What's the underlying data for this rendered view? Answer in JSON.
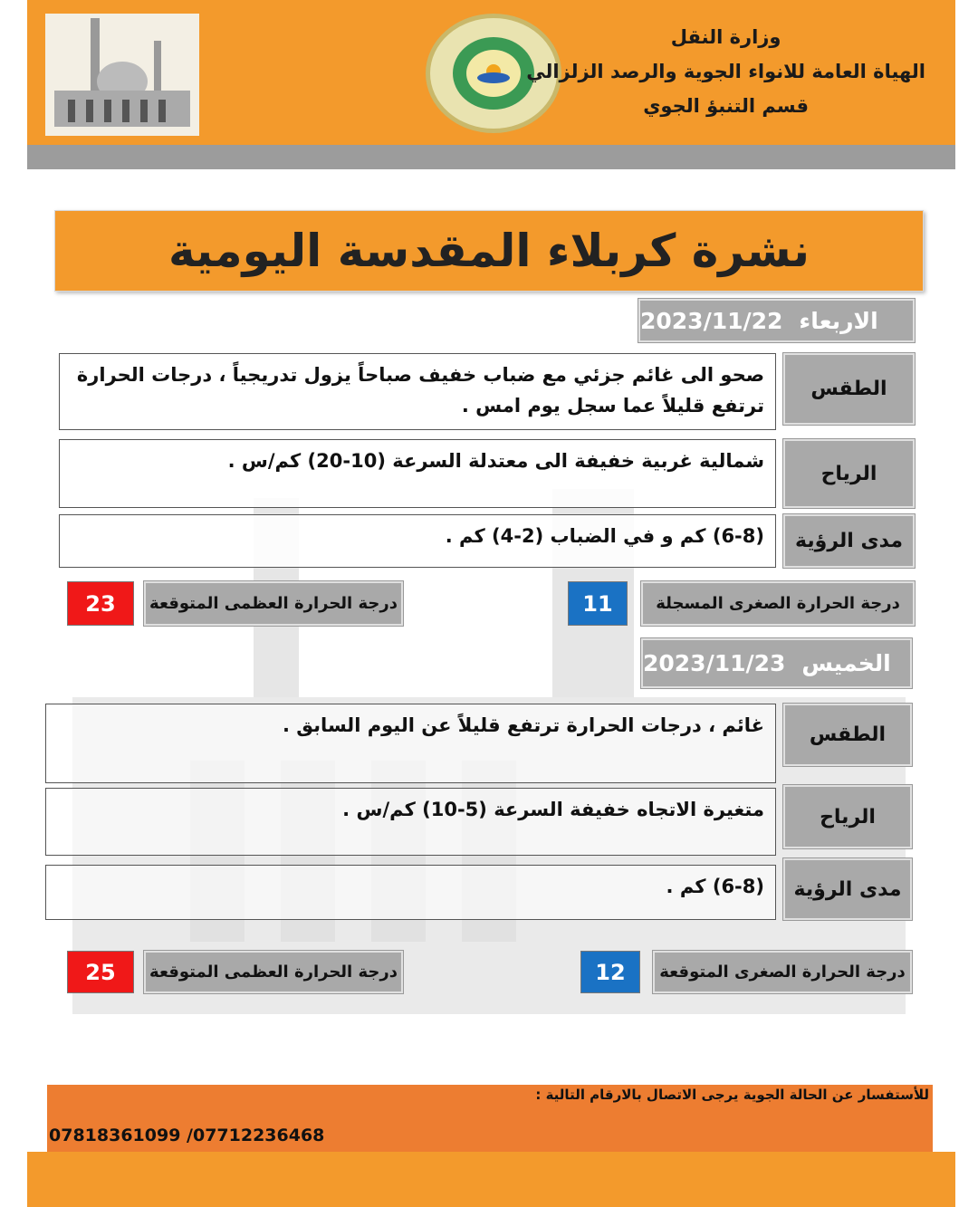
{
  "header": {
    "ministry": "وزارة النقل",
    "authority": "الهياة العامة للانواء الجوية والرصد الزلزالي",
    "department": "قسم التنبؤ الجوي"
  },
  "title": "نشرة كربلاء المقدسة اليومية",
  "days": [
    {
      "day_name": "الاربعاء",
      "date": "2023/11/22",
      "weather_label": "الطقس",
      "weather": "صحو الى غائم جزئي مع ضباب خفيف صباحاً يزول تدريجياً ، درجات الحرارة ترتفع قليلاً عما سجل يوم امس .",
      "wind_label": "الرياح",
      "wind": "شمالية غربية خفيفة الى معتدلة السرعة (10-20) كم/س .",
      "visibility_label": "مدى الرؤية",
      "visibility": "(6-8) كم و في الضباب (2-4) كم .",
      "max_label": "درجة الحرارة العظمى المتوقعة",
      "max": "23",
      "min_label": "درجة الحرارة الصغرى المسجلة",
      "min": "11"
    },
    {
      "day_name": "الخميس",
      "date": "2023/11/23",
      "weather_label": "الطقس",
      "weather": "غائم ، درجات الحرارة ترتفع قليلاً عن اليوم السابق .",
      "wind_label": "الرياح",
      "wind": "متغيرة الاتجاه خفيفة السرعة (5-10) كم/س .",
      "visibility_label": "مدى الرؤية",
      "visibility": "(6-8) كم .",
      "max_label": "درجة الحرارة العظمى المتوقعة",
      "max": "25",
      "min_label": "درجة الحرارة الصغرى المتوقعة",
      "min": "12"
    }
  ],
  "footer": {
    "inquiry": "للأستفسار عن الحالة الجوية يرجى الاتصال بالارقام التالية :",
    "phones": "07818361099 /07712236468"
  },
  "colors": {
    "orange": "#f39a2c",
    "footer_orange": "#ed7d31",
    "max_red": "#f01818",
    "min_blue": "#1a72c4",
    "label_gray": "#a9a9a9"
  }
}
